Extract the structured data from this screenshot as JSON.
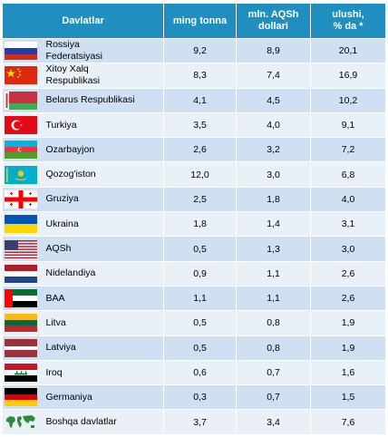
{
  "header": {
    "country": "Davlatlar",
    "tonnes": "ming tonna",
    "usd_line1": "mln. AQSh",
    "usd_line2": "dollari",
    "share_line1": "ulushi,",
    "share_line2": "% da *"
  },
  "rows": [
    {
      "name_l1": "Rossiya",
      "name_l2": "Federatsiyasi",
      "tonnes": "9,2",
      "usd": "8,9",
      "share": "20,1",
      "flag": "russia-flag-icon"
    },
    {
      "name_l1": "Xitoy Xalq",
      "name_l2": "Respublikasi",
      "tonnes": "8,3",
      "usd": "7,4",
      "share": "16,9",
      "flag": "china-flag-icon"
    },
    {
      "name_l1": "Belarus Respublikasi",
      "name_l2": "",
      "tonnes": "4,1",
      "usd": "4,5",
      "share": "10,2",
      "flag": "belarus-flag-icon"
    },
    {
      "name_l1": "Turkiya",
      "name_l2": "",
      "tonnes": "3,5",
      "usd": "4,0",
      "share": "9,1",
      "flag": "turkey-flag-icon"
    },
    {
      "name_l1": "Ozarbayjon",
      "name_l2": "",
      "tonnes": "2,6",
      "usd": "3,2",
      "share": "7,2",
      "flag": "azerbaijan-flag-icon"
    },
    {
      "name_l1": "Qozog'iston",
      "name_l2": "",
      "tonnes": "12,0",
      "usd": "3,0",
      "share": "6,8",
      "flag": "kazakhstan-flag-icon"
    },
    {
      "name_l1": "Gruziya",
      "name_l2": "",
      "tonnes": "2,5",
      "usd": "1,8",
      "share": "4,0",
      "flag": "georgia-flag-icon"
    },
    {
      "name_l1": "Ukraina",
      "name_l2": "",
      "tonnes": "1,8",
      "usd": "1,4",
      "share": "3,1",
      "flag": "ukraine-flag-icon"
    },
    {
      "name_l1": "AQSh",
      "name_l2": "",
      "tonnes": "0,5",
      "usd": "1,3",
      "share": "3,0",
      "flag": "usa-flag-icon"
    },
    {
      "name_l1": "Nidelandiya",
      "name_l2": "",
      "tonnes": "0,9",
      "usd": "1,1",
      "share": "2,6",
      "flag": "netherlands-flag-icon"
    },
    {
      "name_l1": "BAA",
      "name_l2": "",
      "tonnes": "1,1",
      "usd": "1,1",
      "share": "2,6",
      "flag": "uae-flag-icon"
    },
    {
      "name_l1": "Litva",
      "name_l2": "",
      "tonnes": "0,5",
      "usd": "0,8",
      "share": "1,9",
      "flag": "lithuania-flag-icon"
    },
    {
      "name_l1": "Latviya",
      "name_l2": "",
      "tonnes": "0,5",
      "usd": "0,8",
      "share": "1,9",
      "flag": "latvia-flag-icon"
    },
    {
      "name_l1": "Iroq",
      "name_l2": "",
      "tonnes": "0,6",
      "usd": "0,7",
      "share": "1,6",
      "flag": "iraq-flag-icon"
    },
    {
      "name_l1": "Germaniya",
      "name_l2": "",
      "tonnes": "0,3",
      "usd": "0,7",
      "share": "1,5",
      "flag": "germany-flag-icon"
    },
    {
      "name_l1": "Boshqa davlatlar",
      "name_l2": "",
      "tonnes": "3,7",
      "usd": "3,4",
      "share": "7,6",
      "flag": "world-map-icon"
    }
  ]
}
